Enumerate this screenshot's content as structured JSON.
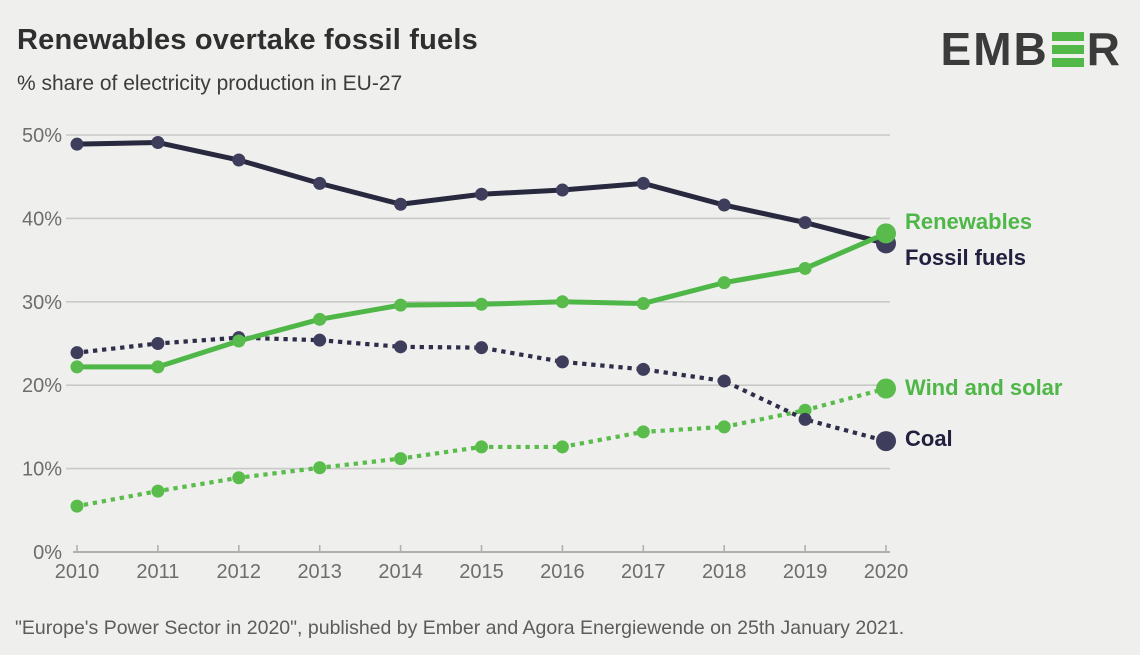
{
  "header": {
    "title": "Renewables overtake fossil fuels",
    "subtitle": "% share of electricity production in EU-27"
  },
  "logo": {
    "name": "EMBER",
    "text_left": "EMB",
    "text_right": "R",
    "green_e_icon": "three-bar-E",
    "dark_color": "#3b3b3b",
    "green_color": "#52b848"
  },
  "legend": {
    "renewables": "Renewables",
    "fossil_fuels": "Fossil fuels",
    "wind_and_solar": "Wind and solar",
    "coal": "Coal"
  },
  "colors": {
    "background": "#efefee",
    "gridline": "#c9c9c7",
    "axis": "#b0b0ae",
    "tick_text": "#6d6d6b",
    "green_line": "#4fb748",
    "green_dot": "#58bb4b",
    "navy_line": "#28283f",
    "navy_dot": "#3e3e5c"
  },
  "chart_data": {
    "type": "line",
    "title": "Renewables overtake fossil fuels",
    "subtitle": "% share of electricity production in EU-27",
    "x": [
      2010,
      2011,
      2012,
      2013,
      2014,
      2015,
      2016,
      2017,
      2018,
      2019,
      2020
    ],
    "xlabel": "",
    "ylabel": "% share of electricity production",
    "ylim": [
      0,
      52
    ],
    "yticks": [
      0,
      10,
      20,
      30,
      40,
      50
    ],
    "y_suffix": "%",
    "grid": true,
    "legend_position": "right of line ends",
    "series": [
      {
        "key": "wind_and_solar",
        "name": "Wind and solar",
        "style": "dotted",
        "color": "#5abc4b",
        "dot_color": "#5abc4b",
        "values": [
          5.5,
          7.3,
          8.9,
          10.1,
          11.2,
          12.6,
          12.6,
          14.4,
          15.0,
          17.0,
          19.6
        ]
      },
      {
        "key": "coal",
        "name": "Coal",
        "style": "dotted",
        "color": "#2e2e4a",
        "dot_color": "#3e3e5c",
        "values": [
          23.9,
          25.0,
          25.7,
          25.4,
          24.6,
          24.5,
          22.8,
          21.9,
          20.5,
          15.9,
          13.3
        ]
      },
      {
        "key": "fossil_fuels",
        "name": "Fossil fuels",
        "style": "solid",
        "color": "#28283f",
        "dot_color": "#3e3e5c",
        "values": [
          48.9,
          49.1,
          47.0,
          44.2,
          41.7,
          42.9,
          43.4,
          44.2,
          41.6,
          39.5,
          37.0
        ]
      },
      {
        "key": "renewables",
        "name": "Renewables",
        "style": "solid",
        "color": "#4fb748",
        "dot_color": "#58bb4b",
        "values": [
          22.2,
          22.2,
          25.3,
          27.9,
          29.6,
          29.7,
          30.0,
          29.8,
          32.3,
          34.0,
          38.2
        ]
      }
    ]
  },
  "footer": {
    "source": "\"Europe's Power Sector in 2020\", published by Ember and Agora Energiewende on 25th January 2021."
  }
}
